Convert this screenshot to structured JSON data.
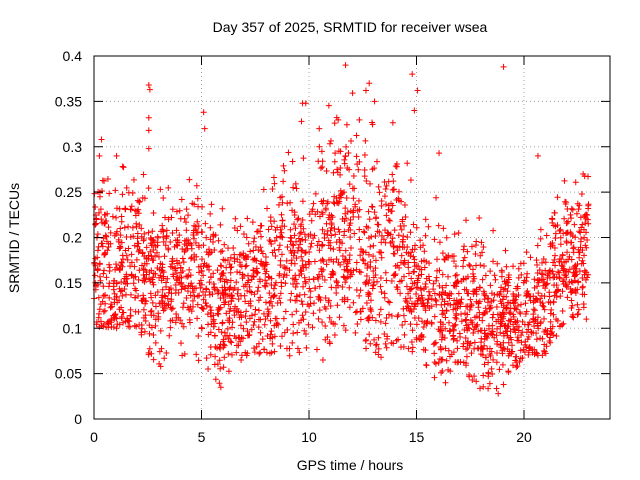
{
  "chart_data": {
    "type": "scatter",
    "title": "Day 357 of 2025, SRMTID for receiver wsea",
    "xlabel": "GPS time / hours",
    "ylabel": "SRMTID / TECUs",
    "xlim": [
      0,
      24
    ],
    "ylim": [
      0,
      0.4
    ],
    "xticks": [
      0,
      5,
      10,
      15,
      20
    ],
    "xtick_labels": [
      "0",
      "5",
      "10",
      "15",
      "20"
    ],
    "yticks": [
      0,
      0.05,
      0.1,
      0.15,
      0.2,
      0.25,
      0.3,
      0.35,
      0.4
    ],
    "ytick_labels": [
      "0",
      "0.05",
      "0.1",
      "0.15",
      "0.2",
      "0.25",
      "0.3",
      "0.35",
      "0.4"
    ],
    "grid": true,
    "marker": "+",
    "marker_color": "#ff0000",
    "series": [
      {
        "name": "wsea",
        "profile": {
          "hours": [
            0.0,
            1.0,
            2.0,
            2.5,
            3.0,
            4.0,
            5.0,
            6.0,
            7.0,
            8.0,
            9.0,
            10.0,
            11.0,
            12.0,
            13.0,
            14.0,
            15.0,
            16.0,
            17.0,
            18.0,
            19.0,
            20.0,
            21.0,
            22.0,
            23.0
          ],
          "median": [
            0.17,
            0.16,
            0.18,
            0.14,
            0.15,
            0.17,
            0.16,
            0.13,
            0.14,
            0.15,
            0.17,
            0.16,
            0.2,
            0.2,
            0.17,
            0.19,
            0.14,
            0.13,
            0.12,
            0.11,
            0.1,
            0.11,
            0.13,
            0.18,
            0.19
          ],
          "spread": [
            0.04,
            0.05,
            0.05,
            0.05,
            0.04,
            0.04,
            0.05,
            0.04,
            0.04,
            0.05,
            0.05,
            0.05,
            0.06,
            0.06,
            0.06,
            0.06,
            0.04,
            0.04,
            0.04,
            0.04,
            0.035,
            0.035,
            0.04,
            0.04,
            0.04
          ],
          "min": [
            0.1,
            0.1,
            0.1,
            0.07,
            0.06,
            0.07,
            0.06,
            0.035,
            0.07,
            0.07,
            0.07,
            0.065,
            0.08,
            0.1,
            0.065,
            0.08,
            0.07,
            0.04,
            0.06,
            0.03,
            0.03,
            0.07,
            0.07,
            0.11,
            0.11
          ],
          "max": [
            0.31,
            0.29,
            0.26,
            0.37,
            0.27,
            0.25,
            0.34,
            0.24,
            0.22,
            0.26,
            0.35,
            0.3,
            0.39,
            0.37,
            0.35,
            0.38,
            0.3,
            0.25,
            0.22,
            0.39,
            0.2,
            0.22,
            0.29,
            0.26,
            0.27
          ]
        },
        "points": [
          [
            2.55,
            0.368
          ],
          [
            2.6,
            0.363
          ],
          [
            2.55,
            0.332
          ],
          [
            2.55,
            0.318
          ],
          [
            5.1,
            0.338
          ],
          [
            5.15,
            0.32
          ],
          [
            9.7,
            0.348
          ],
          [
            9.85,
            0.348
          ],
          [
            9.65,
            0.328
          ],
          [
            11.7,
            0.39
          ],
          [
            12.8,
            0.37
          ],
          [
            12.65,
            0.362
          ],
          [
            13.05,
            0.35
          ],
          [
            14.8,
            0.38
          ],
          [
            15.05,
            0.362
          ],
          [
            14.9,
            0.34
          ],
          [
            19.05,
            0.388
          ],
          [
            20.65,
            0.29
          ],
          [
            0.35,
            0.308
          ],
          [
            0.25,
            0.29
          ],
          [
            1.05,
            0.29
          ],
          [
            2.55,
            0.298
          ],
          [
            16.05,
            0.293
          ],
          [
            22.75,
            0.27
          ],
          [
            5.9,
            0.035
          ],
          [
            18.8,
            0.028
          ],
          [
            19.05,
            0.038
          ],
          [
            16.35,
            0.04
          ],
          [
            3.1,
            0.058
          ],
          [
            18.35,
            0.05
          ],
          [
            10.65,
            0.065
          ],
          [
            13.35,
            0.068
          ],
          [
            4.1,
            0.07
          ],
          [
            1.05,
            0.1
          ],
          [
            22.9,
            0.11
          ],
          [
            7.1,
            0.07
          ]
        ]
      }
    ]
  }
}
